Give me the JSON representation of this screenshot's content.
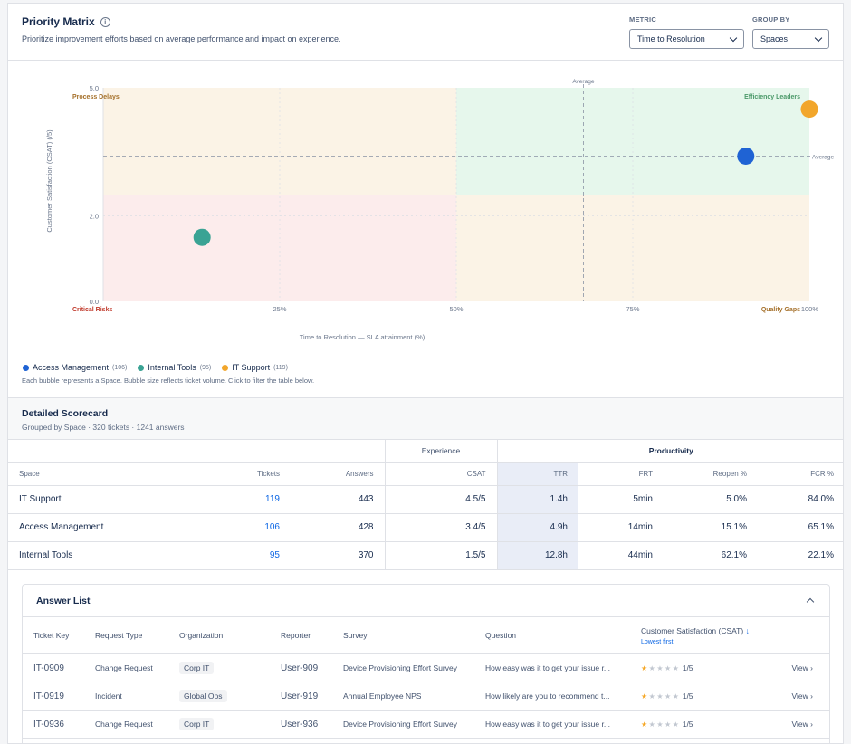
{
  "header": {
    "title": "Priority Matrix",
    "subtitle": "Prioritize improvement efforts based on average performance and impact on experience.",
    "metric_label": "METRIC",
    "metric_value": "Time to Resolution",
    "group_label": "GROUP BY",
    "group_value": "Spaces"
  },
  "chart_data": {
    "type": "scatter",
    "xlabel": "Time to Resolution — SLA attainment (%)",
    "ylabel": "Customer Satisfaction (CSAT) (/5)",
    "xlim": [
      0,
      100
    ],
    "ylim": [
      0,
      5
    ],
    "x_ticks": [
      "25%",
      "50%",
      "75%",
      "100%"
    ],
    "y_ticks": [
      "0.0",
      "2.0",
      "5.0"
    ],
    "average_x": 68,
    "average_y": 3.4,
    "average_label_top": "Average",
    "average_label_right": "Average",
    "quadrants": {
      "top_left": "Process Delays",
      "top_right": "Efficiency Leaders",
      "bottom_left": "Critical Risks",
      "bottom_right": "Quality Gaps"
    },
    "colors": {
      "Access Management": "#1f63d4",
      "Internal Tools": "#3aa394",
      "IT Support": "#f2a62b",
      "q_green": "#e6f7ec",
      "q_orange": "#fbf3e6",
      "q_red": "#fcecec"
    },
    "points": [
      {
        "name": "Access Management",
        "x": 91,
        "y": 3.4,
        "tickets": 106
      },
      {
        "name": "Internal Tools",
        "x": 14,
        "y": 1.5,
        "tickets": 95
      },
      {
        "name": "IT Support",
        "x": 100,
        "y": 4.5,
        "tickets": 119
      }
    ]
  },
  "legend": {
    "items": [
      {
        "name": "Access Management",
        "count": "(106)",
        "color": "#1f63d4"
      },
      {
        "name": "Internal Tools",
        "count": "(95)",
        "color": "#3aa394"
      },
      {
        "name": "IT Support",
        "count": "(119)",
        "color": "#f2a62b"
      }
    ],
    "note": "Each bubble represents a Space. Bubble size reflects ticket volume. Click to filter the table below."
  },
  "scorecard": {
    "title": "Detailed Scorecard",
    "subtitle": "Grouped by Space · 320 tickets · 1241 answers",
    "group_experience": "Experience",
    "group_productivity": "Productivity",
    "columns": [
      "Space",
      "Tickets",
      "Answers",
      "CSAT",
      "TTR",
      "FRT",
      "Reopen %",
      "FCR %"
    ],
    "rows": [
      {
        "space": "IT Support",
        "tickets": "119",
        "answers": "443",
        "csat": "4.5/5",
        "ttr": "1.4h",
        "frt": "5min",
        "reopen": "5.0%",
        "fcr": "84.0%"
      },
      {
        "space": "Access Management",
        "tickets": "106",
        "answers": "428",
        "csat": "3.4/5",
        "ttr": "4.9h",
        "frt": "14min",
        "reopen": "15.1%",
        "fcr": "65.1%"
      },
      {
        "space": "Internal Tools",
        "tickets": "95",
        "answers": "370",
        "csat": "1.5/5",
        "ttr": "12.8h",
        "frt": "44min",
        "reopen": "62.1%",
        "fcr": "22.1%"
      }
    ]
  },
  "answers": {
    "title": "Answer List",
    "columns": [
      "Ticket Key",
      "Request Type",
      "Organization",
      "Reporter",
      "Survey",
      "Question",
      "Customer Satisfaction (CSAT)"
    ],
    "sort_arrow": "↓",
    "sort_label": "Lowest first",
    "view_label": "View",
    "rows": [
      {
        "key": "IT-0909",
        "type": "Change Request",
        "org": "Corp IT",
        "reporter": "User-909",
        "survey": "Device Provisioning Effort Survey",
        "question": "How easy was it to get your issue r...",
        "score": "1/5",
        "stars": 1
      },
      {
        "key": "IT-0919",
        "type": "Incident",
        "org": "Global Ops",
        "reporter": "User-919",
        "survey": "Annual Employee NPS",
        "question": "How likely are you to recommend t...",
        "score": "1/5",
        "stars": 1
      },
      {
        "key": "IT-0936",
        "type": "Change Request",
        "org": "Corp IT",
        "reporter": "User-936",
        "survey": "Device Provisioning Effort Survey",
        "question": "How easy was it to get your issue r...",
        "score": "1/5",
        "stars": 1
      }
    ]
  }
}
